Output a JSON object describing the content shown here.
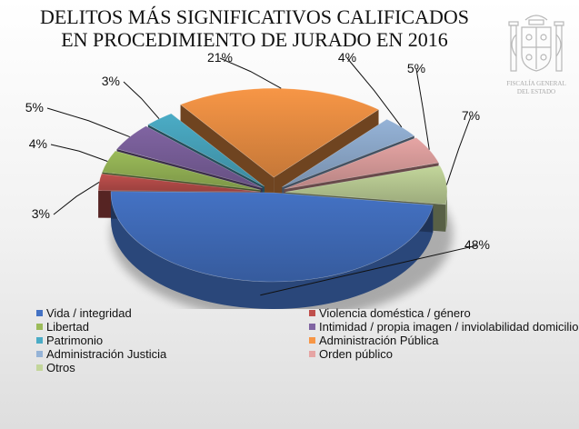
{
  "chart_data": {
    "type": "pie",
    "title_lines": [
      "DELITOS MÁS SIGNIFICATIVOS CALIFICADOS",
      "EN PROCEDIMIENTO DE JURADO EN 2016"
    ],
    "legend_placement": "bottom",
    "slices": [
      {
        "name": "Vida / integridad",
        "value": 48,
        "label": "48%",
        "color": "#4472c4"
      },
      {
        "name": "Violencia doméstica / género",
        "value": 3,
        "label": "3%",
        "color": "#c0504d"
      },
      {
        "name": "Libertad",
        "value": 4,
        "label": "4%",
        "color": "#9bbb59"
      },
      {
        "name": "Intimidad / propia imagen / inviolabilidad domicilio",
        "value": 5,
        "label": "5%",
        "color": "#8064a2"
      },
      {
        "name": "Patrimonio",
        "value": 3,
        "label": "3%",
        "color": "#4bacc6"
      },
      {
        "name": "Administración Pública",
        "value": 21,
        "label": "21%",
        "color": "#f79646"
      },
      {
        "name": "Administración Justicia",
        "value": 4,
        "label": "4%",
        "color": "#95b3d7"
      },
      {
        "name": "Orden público",
        "value": 5,
        "label": "5%",
        "color": "#e6a5a4"
      },
      {
        "name": "Otros",
        "value": 7,
        "label": "7%",
        "color": "#c3d69b"
      }
    ]
  },
  "emblem": {
    "name": "coat-of-arms-icon",
    "text_line1": "FISCALÍA GENERAL",
    "text_line2": "DEL ESTADO"
  }
}
